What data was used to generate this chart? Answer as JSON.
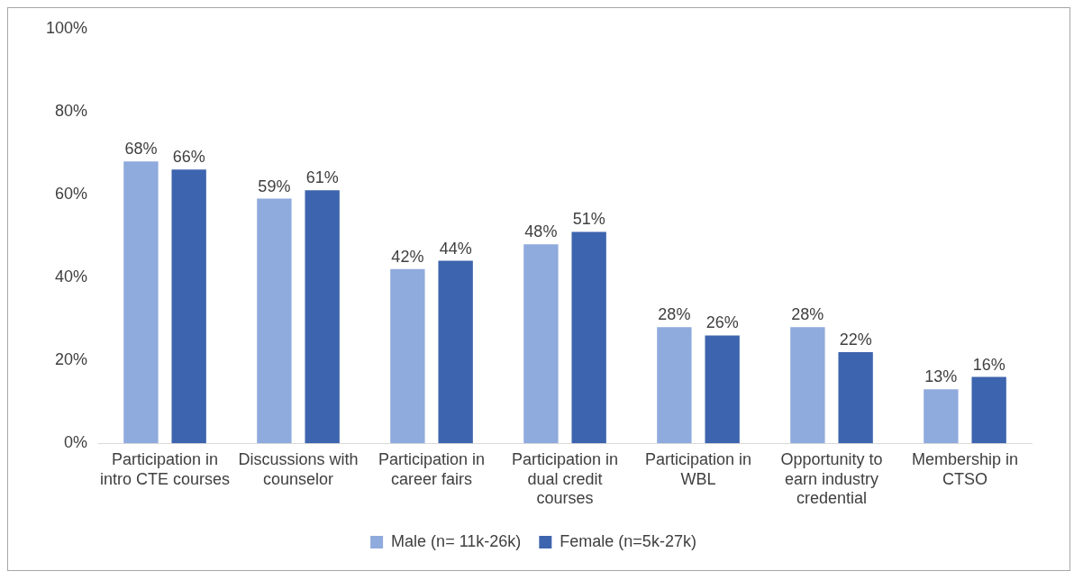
{
  "chart_data": {
    "type": "bar",
    "categories": [
      "Participation in intro CTE courses",
      "Discussions with counselor",
      "Participation in career fairs",
      "Participation in dual credit courses",
      "Participation in WBL",
      "Opportunity to earn industry credential",
      "Membership in CTSO"
    ],
    "series": [
      {
        "name": "Male (n= 11k-26k)",
        "color": "#8faadc",
        "values": [
          68,
          59,
          42,
          48,
          28,
          28,
          13
        ],
        "value_labels": [
          "68%",
          "59%",
          "42%",
          "48%",
          "28%",
          "28%",
          "13%"
        ]
      },
      {
        "name": "Female (n=5k-27k)",
        "color": "#3d64ae",
        "values": [
          66,
          61,
          44,
          51,
          26,
          22,
          16
        ],
        "value_labels": [
          "66%",
          "61%",
          "44%",
          "51%",
          "26%",
          "22%",
          "16%"
        ]
      }
    ],
    "ylim": [
      0,
      100
    ],
    "yticks": [
      {
        "value": 0,
        "label": "0%"
      },
      {
        "value": 20,
        "label": "20%"
      },
      {
        "value": 40,
        "label": "40%"
      },
      {
        "value": 60,
        "label": "60%"
      },
      {
        "value": 80,
        "label": "80%"
      },
      {
        "value": 100,
        "label": "100%"
      }
    ],
    "grid": false,
    "legend": "bottom"
  }
}
